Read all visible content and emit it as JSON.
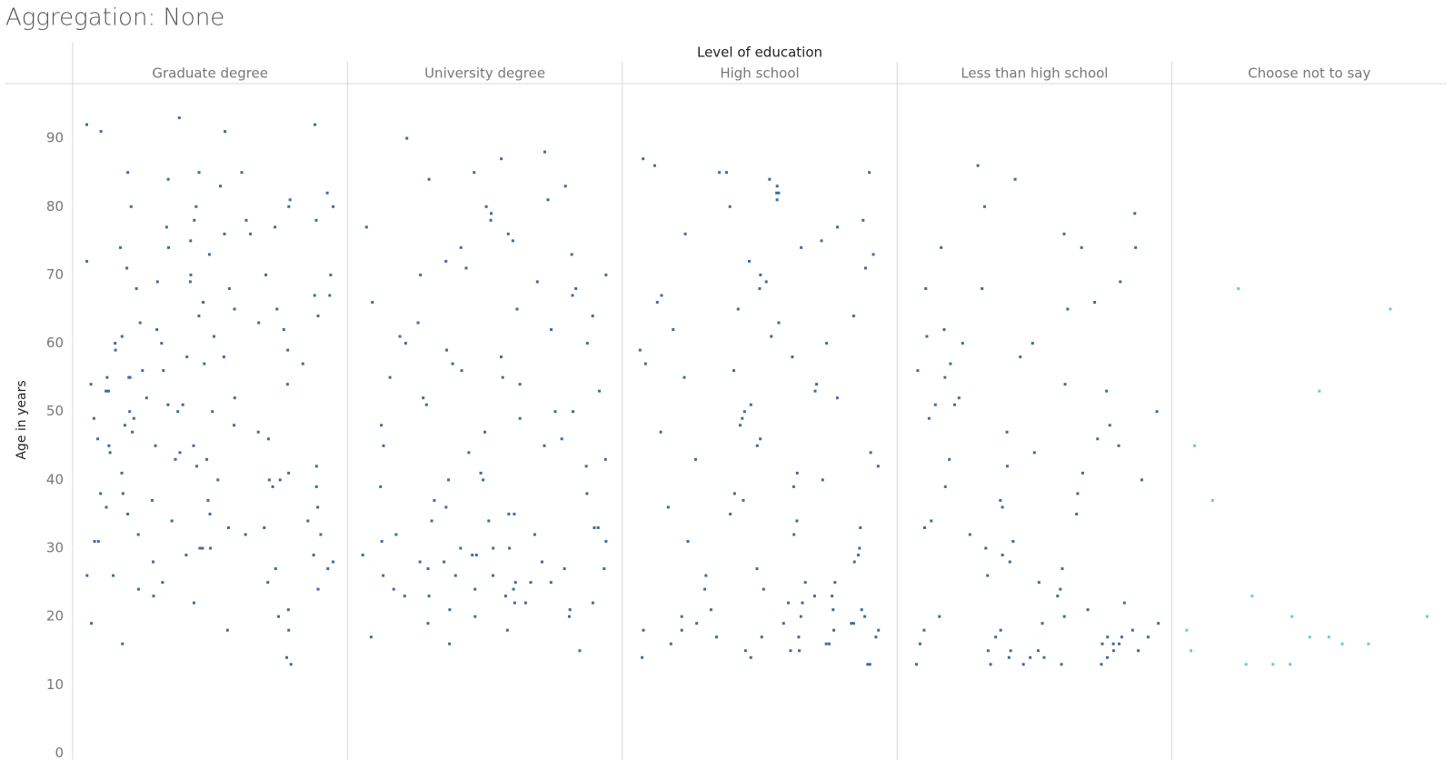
{
  "chart_data": {
    "type": "strip",
    "title": "Aggregation: None",
    "column_header": "Level of education",
    "y_label": "Age in years",
    "ylim": [
      -1,
      98
    ],
    "yticks": [
      0,
      10,
      20,
      30,
      40,
      50,
      60,
      70,
      80,
      90
    ],
    "series": [
      {
        "name": "Graduate degree",
        "color": "#3e6d9c",
        "values": [
          92,
          92,
          91,
          91,
          93,
          85,
          85,
          85,
          84,
          83,
          82,
          81,
          80,
          80,
          80,
          80,
          78,
          78,
          78,
          77,
          77,
          76,
          76,
          75,
          74,
          74,
          73,
          72,
          71,
          70,
          70,
          70,
          69,
          69,
          68,
          68,
          67,
          67,
          66,
          65,
          65,
          64,
          64,
          63,
          63,
          62,
          62,
          61,
          61,
          60,
          60,
          59,
          59,
          58,
          58,
          57,
          57,
          56,
          56,
          55,
          55,
          55,
          54,
          54,
          53,
          53,
          52,
          52,
          51,
          51,
          50,
          50,
          50,
          49,
          49,
          48,
          48,
          47,
          47,
          46,
          46,
          45,
          45,
          45,
          44,
          44,
          43,
          43,
          42,
          42,
          41,
          41,
          40,
          40,
          40,
          39,
          39,
          38,
          38,
          37,
          37,
          36,
          36,
          35,
          35,
          34,
          34,
          33,
          33,
          32,
          32,
          32,
          31,
          31,
          30,
          30,
          30,
          29,
          29,
          28,
          28,
          27,
          27,
          26,
          26,
          25,
          25,
          24,
          24,
          23,
          22,
          21,
          20,
          19,
          18,
          18,
          16,
          14,
          13
        ]
      },
      {
        "name": "University degree",
        "color": "#3e6d9c",
        "values": [
          90,
          88,
          87,
          85,
          84,
          83,
          81,
          80,
          79,
          78,
          77,
          76,
          75,
          74,
          73,
          72,
          71,
          70,
          70,
          69,
          68,
          67,
          66,
          65,
          64,
          63,
          62,
          61,
          60,
          60,
          59,
          58,
          57,
          56,
          55,
          55,
          54,
          53,
          52,
          51,
          50,
          50,
          49,
          48,
          47,
          46,
          45,
          45,
          44,
          43,
          42,
          41,
          40,
          40,
          39,
          38,
          37,
          36,
          35,
          35,
          34,
          34,
          33,
          33,
          32,
          32,
          31,
          31,
          30,
          30,
          30,
          29,
          29,
          29,
          28,
          28,
          28,
          27,
          27,
          27,
          26,
          26,
          26,
          25,
          25,
          25,
          24,
          24,
          24,
          23,
          23,
          23,
          22,
          22,
          22,
          21,
          21,
          20,
          20,
          19,
          18,
          17,
          16,
          15
        ]
      },
      {
        "name": "High school",
        "color": "#3e6d9c",
        "values": [
          87,
          86,
          85,
          85,
          85,
          84,
          83,
          82,
          82,
          81,
          80,
          78,
          77,
          76,
          75,
          74,
          73,
          72,
          71,
          70,
          69,
          68,
          67,
          66,
          65,
          64,
          63,
          62,
          61,
          60,
          59,
          58,
          57,
          56,
          55,
          54,
          53,
          52,
          51,
          50,
          49,
          48,
          47,
          46,
          45,
          44,
          43,
          42,
          41,
          40,
          39,
          38,
          37,
          36,
          35,
          34,
          33,
          32,
          31,
          30,
          29,
          28,
          27,
          26,
          25,
          25,
          24,
          24,
          23,
          23,
          22,
          22,
          21,
          21,
          21,
          20,
          20,
          20,
          19,
          19,
          19,
          19,
          18,
          18,
          18,
          18,
          17,
          17,
          17,
          17,
          16,
          16,
          16,
          15,
          15,
          15,
          14,
          14,
          13,
          13
        ]
      },
      {
        "name": "Less than high school",
        "color": "#3e6d9c",
        "values": [
          86,
          84,
          80,
          79,
          76,
          74,
          74,
          74,
          69,
          68,
          68,
          66,
          65,
          62,
          61,
          60,
          60,
          58,
          57,
          56,
          55,
          54,
          53,
          52,
          51,
          51,
          50,
          49,
          48,
          47,
          46,
          45,
          44,
          43,
          42,
          41,
          40,
          39,
          38,
          37,
          36,
          35,
          34,
          33,
          32,
          31,
          30,
          29,
          28,
          27,
          26,
          25,
          24,
          23,
          22,
          21,
          20,
          20,
          19,
          19,
          18,
          18,
          18,
          17,
          17,
          17,
          17,
          16,
          16,
          16,
          16,
          15,
          15,
          15,
          15,
          15,
          14,
          14,
          14,
          14,
          13,
          13,
          13,
          13,
          13
        ]
      },
      {
        "name": "Choose not to say",
        "color": "#5fcfe0",
        "values": [
          68,
          65,
          53,
          45,
          37,
          23,
          20,
          20,
          18,
          17,
          17,
          16,
          16,
          15,
          13,
          13,
          13
        ]
      }
    ]
  }
}
